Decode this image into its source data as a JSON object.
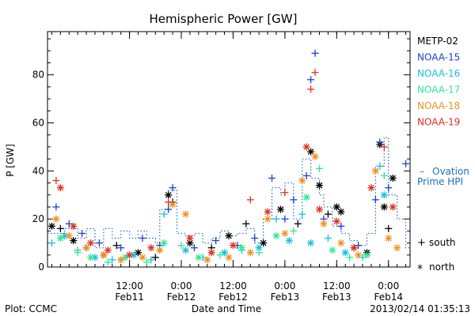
{
  "chart_data": {
    "type": "scatter",
    "title": "Hemispheric Power [GW]",
    "ylabel": "P [GW]",
    "xlabel": "Date and Time",
    "xlim": [
      "2013-02-10T17:00",
      "2013-02-14T05:00"
    ],
    "ylim": [
      0,
      98
    ],
    "yticks": [
      0,
      20,
      40,
      60,
      80
    ],
    "grid": false,
    "xticks": [
      {
        "t": "2013-02-11T12:00",
        "time": "12:00",
        "date": "Feb11"
      },
      {
        "t": "2013-02-12T00:00",
        "time": "0:00",
        "date": "Feb12"
      },
      {
        "t": "2013-02-12T12:00",
        "time": "12:00",
        "date": "Feb12"
      },
      {
        "t": "2013-02-13T00:00",
        "time": "0:00",
        "date": "Feb13"
      },
      {
        "t": "2013-02-13T12:00",
        "time": "12:00",
        "date": "Feb13"
      },
      {
        "t": "2013-02-14T00:00",
        "time": "0:00",
        "date": "Feb14"
      }
    ],
    "legend": {
      "placement": "right",
      "satellites": [
        {
          "name": "METP-02",
          "color": "#000000"
        },
        {
          "name": "NOAA-15",
          "color": "#1f3fd0"
        },
        {
          "name": "NOAA-16",
          "color": "#18c0e0"
        },
        {
          "name": "NOAA-17",
          "color": "#30e890"
        },
        {
          "name": "NOAA-18",
          "color": "#f09020"
        },
        {
          "name": "NOAA-19",
          "color": "#e03020"
        }
      ],
      "ovation_dash": "–",
      "ovation_line1": "Ovation",
      "ovation_line2": "Prime HPI",
      "ovation_color": "#1f6fc0",
      "south_symbol": "+",
      "south_label": "south",
      "north_symbol": "*",
      "north_label": "north"
    },
    "series": [
      {
        "name": "METP-02",
        "color": "#000000",
        "points": [
          [
            "2013-02-10T18:00",
            17,
            "n"
          ],
          [
            "2013-02-10T20:00",
            16,
            "s"
          ],
          [
            "2013-02-10T23:00",
            11,
            "n"
          ],
          [
            "2013-02-11T02:00",
            8,
            "s"
          ],
          [
            "2013-02-11T06:00",
            5,
            "n"
          ],
          [
            "2013-02-11T09:00",
            9,
            "s"
          ],
          [
            "2013-02-11T14:00",
            6,
            "n"
          ],
          [
            "2013-02-11T18:00",
            4,
            "s"
          ],
          [
            "2013-02-11T21:00",
            30,
            "n"
          ],
          [
            "2013-02-11T22:00",
            27,
            "s"
          ],
          [
            "2013-02-12T02:00",
            10,
            "n"
          ],
          [
            "2013-02-12T07:00",
            8,
            "s"
          ],
          [
            "2013-02-12T11:00",
            13,
            "n"
          ],
          [
            "2013-02-12T15:00",
            18,
            "s"
          ],
          [
            "2013-02-12T19:00",
            10,
            "n"
          ],
          [
            "2013-02-12T23:00",
            24,
            "n"
          ],
          [
            "2013-02-13T03:00",
            18,
            "s"
          ],
          [
            "2013-02-13T06:00",
            48,
            "n"
          ],
          [
            "2013-02-13T08:00",
            34,
            "n"
          ],
          [
            "2013-02-13T10:00",
            22,
            "s"
          ],
          [
            "2013-02-13T12:00",
            25,
            "n"
          ],
          [
            "2013-02-13T13:00",
            23,
            "n"
          ],
          [
            "2013-02-13T16:00",
            8,
            "s"
          ],
          [
            "2013-02-13T19:00",
            6,
            "n"
          ],
          [
            "2013-02-13T22:00",
            51,
            "n"
          ],
          [
            "2013-02-13T23:00",
            25,
            "n"
          ],
          [
            "2013-02-14T00:00",
            16,
            "s"
          ],
          [
            "2013-02-14T01:00",
            37,
            "n"
          ]
        ]
      },
      {
        "name": "NOAA-15",
        "color": "#1f3fd0",
        "points": [
          [
            "2013-02-10T19:00",
            25,
            "s"
          ],
          [
            "2013-02-10T22:00",
            18,
            "s"
          ],
          [
            "2013-02-11T01:00",
            14,
            "s"
          ],
          [
            "2013-02-11T05:00",
            10,
            "s"
          ],
          [
            "2013-02-11T10:00",
            8,
            "s"
          ],
          [
            "2013-02-11T15:00",
            12,
            "s"
          ],
          [
            "2013-02-11T19:00",
            9,
            "s"
          ],
          [
            "2013-02-11T21:00",
            24,
            "s"
          ],
          [
            "2013-02-11T22:00",
            33,
            "s"
          ],
          [
            "2013-02-12T03:00",
            8,
            "s"
          ],
          [
            "2013-02-12T08:00",
            11,
            "s"
          ],
          [
            "2013-02-12T13:00",
            9,
            "s"
          ],
          [
            "2013-02-12T17:00",
            12,
            "s"
          ],
          [
            "2013-02-12T21:00",
            37,
            "s"
          ],
          [
            "2013-02-13T00:00",
            20,
            "s"
          ],
          [
            "2013-02-13T02:00",
            28,
            "s"
          ],
          [
            "2013-02-13T05:00",
            38,
            "s"
          ],
          [
            "2013-02-13T06:00",
            78,
            "s"
          ],
          [
            "2013-02-13T07:00",
            89,
            "s"
          ],
          [
            "2013-02-13T09:00",
            20,
            "s"
          ],
          [
            "2013-02-13T13:00",
            17,
            "s"
          ],
          [
            "2013-02-13T17:00",
            9,
            "s"
          ],
          [
            "2013-02-13T21:00",
            28,
            "s"
          ],
          [
            "2013-02-13T22:00",
            52,
            "s"
          ],
          [
            "2013-02-14T00:00",
            33,
            "s"
          ],
          [
            "2013-02-14T04:00",
            43,
            "s"
          ]
        ]
      },
      {
        "name": "NOAA-16",
        "color": "#18c0e0",
        "points": [
          [
            "2013-02-10T18:00",
            10,
            "s"
          ],
          [
            "2013-02-10T21:00",
            13,
            "n"
          ],
          [
            "2013-02-11T00:00",
            7,
            "s"
          ],
          [
            "2013-02-11T04:00",
            4,
            "n"
          ],
          [
            "2013-02-11T08:00",
            3,
            "s"
          ],
          [
            "2013-02-11T13:00",
            5,
            "n"
          ],
          [
            "2013-02-11T17:00",
            3,
            "s"
          ],
          [
            "2013-02-11T20:00",
            22,
            "s"
          ],
          [
            "2013-02-12T01:00",
            7,
            "n"
          ],
          [
            "2013-02-12T05:00",
            4,
            "s"
          ],
          [
            "2013-02-12T10:00",
            6,
            "n"
          ],
          [
            "2013-02-12T14:00",
            7,
            "s"
          ],
          [
            "2013-02-12T18:00",
            8,
            "n"
          ],
          [
            "2013-02-12T22:00",
            20,
            "s"
          ],
          [
            "2013-02-13T01:00",
            11,
            "n"
          ],
          [
            "2013-02-13T04:00",
            22,
            "s"
          ],
          [
            "2013-02-13T06:00",
            10,
            "n"
          ],
          [
            "2013-02-13T10:00",
            12,
            "s"
          ],
          [
            "2013-02-13T14:00",
            6,
            "n"
          ],
          [
            "2013-02-13T18:00",
            4,
            "s"
          ],
          [
            "2013-02-13T22:00",
            42,
            "s"
          ],
          [
            "2013-02-13T23:00",
            30,
            "n"
          ]
        ]
      },
      {
        "name": "NOAA-17",
        "color": "#30e890",
        "points": [
          [
            "2013-02-10T20:00",
            12,
            "n"
          ],
          [
            "2013-02-11T00:00",
            6,
            "s"
          ],
          [
            "2013-02-11T03:00",
            4,
            "n"
          ],
          [
            "2013-02-11T07:00",
            2,
            "s"
          ],
          [
            "2013-02-11T11:00",
            4,
            "n"
          ],
          [
            "2013-02-11T16:00",
            2,
            "s"
          ],
          [
            "2013-02-11T20:00",
            10,
            "n"
          ],
          [
            "2013-02-12T00:00",
            9,
            "s"
          ],
          [
            "2013-02-12T04:00",
            4,
            "n"
          ],
          [
            "2013-02-12T09:00",
            5,
            "s"
          ],
          [
            "2013-02-12T14:00",
            8,
            "n"
          ],
          [
            "2013-02-12T18:00",
            6,
            "s"
          ],
          [
            "2013-02-12T22:00",
            13,
            "n"
          ],
          [
            "2013-02-13T02:00",
            15,
            "s"
          ],
          [
            "2013-02-13T05:00",
            29,
            "n"
          ],
          [
            "2013-02-13T08:00",
            41,
            "s"
          ],
          [
            "2013-02-13T11:00",
            7,
            "n"
          ],
          [
            "2013-02-13T15:00",
            4,
            "s"
          ],
          [
            "2013-02-13T19:00",
            5,
            "n"
          ],
          [
            "2013-02-13T23:00",
            38,
            "s"
          ]
        ]
      },
      {
        "name": "NOAA-18",
        "color": "#f09020",
        "points": [
          [
            "2013-02-10T19:00",
            20,
            "n"
          ],
          [
            "2013-02-10T22:00",
            13,
            "n"
          ],
          [
            "2013-02-11T02:00",
            8,
            "n"
          ],
          [
            "2013-02-11T06:00",
            5,
            "n"
          ],
          [
            "2013-02-11T10:00",
            3,
            "n"
          ],
          [
            "2013-02-11T15:00",
            4,
            "n"
          ],
          [
            "2013-02-11T19:00",
            7,
            "n"
          ],
          [
            "2013-02-11T22:00",
            26,
            "n"
          ],
          [
            "2013-02-12T01:00",
            22,
            "n"
          ],
          [
            "2013-02-12T06:00",
            3,
            "n"
          ],
          [
            "2013-02-12T11:00",
            4,
            "n"
          ],
          [
            "2013-02-12T16:00",
            6,
            "n"
          ],
          [
            "2013-02-12T20:00",
            20,
            "n"
          ],
          [
            "2013-02-13T00:00",
            14,
            "n"
          ],
          [
            "2013-02-13T04:00",
            36,
            "n"
          ],
          [
            "2013-02-13T07:00",
            46,
            "n"
          ],
          [
            "2013-02-13T09:00",
            18,
            "n"
          ],
          [
            "2013-02-13T13:00",
            10,
            "n"
          ],
          [
            "2013-02-13T17:00",
            5,
            "n"
          ],
          [
            "2013-02-13T21:00",
            40,
            "n"
          ],
          [
            "2013-02-14T00:00",
            12,
            "n"
          ],
          [
            "2013-02-14T02:00",
            8,
            "n"
          ]
        ]
      },
      {
        "name": "NOAA-19",
        "color": "#e03020",
        "points": [
          [
            "2013-02-10T19:00",
            36,
            "s"
          ],
          [
            "2013-02-10T20:00",
            33,
            "n"
          ],
          [
            "2013-02-10T23:00",
            17,
            "n"
          ],
          [
            "2013-02-11T03:00",
            10,
            "n"
          ],
          [
            "2013-02-11T07:00",
            7,
            "n"
          ],
          [
            "2013-02-11T12:00",
            5,
            "n"
          ],
          [
            "2013-02-11T17:00",
            8,
            "n"
          ],
          [
            "2013-02-11T21:00",
            27,
            "s"
          ],
          [
            "2013-02-12T02:00",
            12,
            "n"
          ],
          [
            "2013-02-12T07:00",
            6,
            "n"
          ],
          [
            "2013-02-12T12:00",
            9,
            "n"
          ],
          [
            "2013-02-12T16:00",
            28,
            "s"
          ],
          [
            "2013-02-12T20:00",
            23,
            "n"
          ],
          [
            "2013-02-13T00:00",
            31,
            "s"
          ],
          [
            "2013-02-13T05:00",
            50,
            "n"
          ],
          [
            "2013-02-13T06:00",
            74,
            "s"
          ],
          [
            "2013-02-13T07:00",
            81,
            "s"
          ],
          [
            "2013-02-13T08:00",
            24,
            "n"
          ],
          [
            "2013-02-13T12:00",
            19,
            "n"
          ],
          [
            "2013-02-13T16:00",
            8,
            "n"
          ],
          [
            "2013-02-13T20:00",
            33,
            "n"
          ],
          [
            "2013-02-13T23:00",
            50,
            "s"
          ],
          [
            "2013-02-14T01:00",
            25,
            "n"
          ]
        ]
      }
    ],
    "ovation": [
      [
        "2013-02-10T17:00",
        14
      ],
      [
        "2013-02-10T21:00",
        16
      ],
      [
        "2013-02-11T00:00",
        12
      ],
      [
        "2013-02-11T02:00",
        16
      ],
      [
        "2013-02-11T04:00",
        8
      ],
      [
        "2013-02-11T06:00",
        16
      ],
      [
        "2013-02-11T08:00",
        12
      ],
      [
        "2013-02-11T10:00",
        15
      ],
      [
        "2013-02-11T12:00",
        12
      ],
      [
        "2013-02-11T14:00",
        15
      ],
      [
        "2013-02-11T16:00",
        12
      ],
      [
        "2013-02-11T18:00",
        10
      ],
      [
        "2013-02-11T19:00",
        24
      ],
      [
        "2013-02-11T21:00",
        32
      ],
      [
        "2013-02-11T23:00",
        14
      ],
      [
        "2013-02-12T01:00",
        13
      ],
      [
        "2013-02-12T03:00",
        14
      ],
      [
        "2013-02-12T05:00",
        10
      ],
      [
        "2013-02-12T07:00",
        12
      ],
      [
        "2013-02-12T09:00",
        15
      ],
      [
        "2013-02-12T11:00",
        13
      ],
      [
        "2013-02-12T13:00",
        14
      ],
      [
        "2013-02-12T15:00",
        16
      ],
      [
        "2013-02-12T17:00",
        10
      ],
      [
        "2013-02-12T19:00",
        20
      ],
      [
        "2013-02-12T21:00",
        33
      ],
      [
        "2013-02-12T23:00",
        30
      ],
      [
        "2013-02-13T00:00",
        35
      ],
      [
        "2013-02-13T02:00",
        20
      ],
      [
        "2013-02-13T04:00",
        45
      ],
      [
        "2013-02-13T06:00",
        37
      ],
      [
        "2013-02-13T08:00",
        30
      ],
      [
        "2013-02-13T09:00",
        25
      ],
      [
        "2013-02-13T11:00",
        17
      ],
      [
        "2013-02-13T13:00",
        14
      ],
      [
        "2013-02-13T15:00",
        11
      ],
      [
        "2013-02-13T17:00",
        9
      ],
      [
        "2013-02-13T19:00",
        14
      ],
      [
        "2013-02-13T21:00",
        42
      ],
      [
        "2013-02-13T23:00",
        54
      ],
      [
        "2013-02-14T00:00",
        30
      ],
      [
        "2013-02-14T02:00",
        20
      ],
      [
        "2013-02-14T04:00",
        8
      ]
    ]
  },
  "footer": {
    "left": "Plot: CCMC",
    "center": "Date and Time",
    "right": "2013/02/14 01:35:13"
  }
}
